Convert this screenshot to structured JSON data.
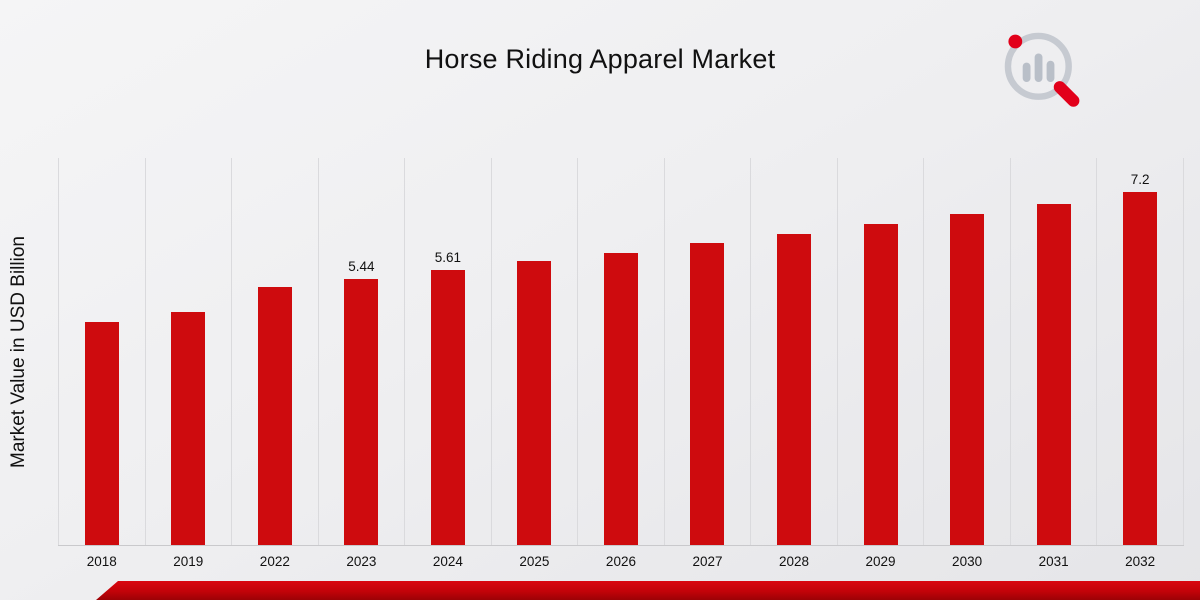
{
  "chart_data": {
    "type": "bar",
    "title": "Horse Riding Apparel Market",
    "ylabel": "Market Value in USD Billion",
    "categories": [
      "2018",
      "2019",
      "2022",
      "2023",
      "2024",
      "2025",
      "2026",
      "2027",
      "2028",
      "2029",
      "2030",
      "2031",
      "2032"
    ],
    "values": [
      4.55,
      4.76,
      5.26,
      5.44,
      5.61,
      5.79,
      5.97,
      6.16,
      6.35,
      6.55,
      6.76,
      6.97,
      7.2
    ],
    "data_labels": [
      "",
      "",
      "",
      "5.44",
      "5.61",
      "",
      "",
      "",
      "",
      "",
      "",
      "",
      "7.2"
    ],
    "bar_color": "#ce0b0e",
    "ylim": [
      0,
      7.9
    ],
    "grid": "vertical",
    "legend": "none"
  },
  "brand": {
    "logo": "magnifier-bar-chart-logo",
    "accent_red": "#e2001a",
    "logo_gray": "#c2c7ce",
    "footer_bar_color": "#c20309"
  }
}
